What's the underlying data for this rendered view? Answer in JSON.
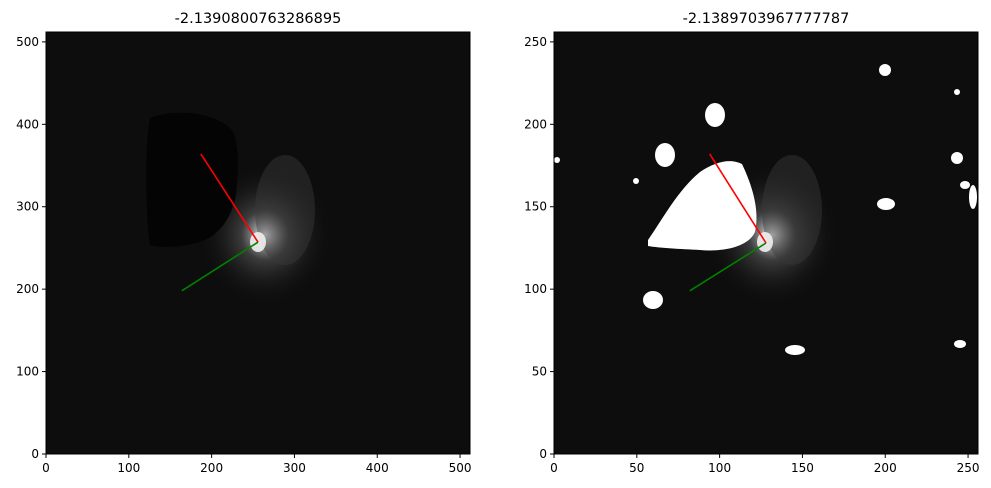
{
  "chart_data": [
    {
      "type": "heatmap",
      "title": "-2.1390800763286895",
      "xlim": [
        0,
        512
      ],
      "ylim": [
        0,
        512
      ],
      "xticks": [
        0,
        100,
        200,
        300,
        400,
        500
      ],
      "yticks": [
        0,
        100,
        200,
        300,
        400,
        500
      ],
      "tick_labels": {
        "x": [
          "0",
          "100",
          "200",
          "300",
          "400",
          "500"
        ],
        "y": [
          "0",
          "100",
          "200",
          "300",
          "400",
          "500"
        ]
      },
      "colormap": "gray",
      "grid": false,
      "image_description_elements": {
        "galaxy_center": [
          256,
          256
        ],
        "dark_masked_region_center": [
          190,
          300
        ]
      },
      "series": [
        {
          "color": "#ff0000",
          "x": [
            187,
            256
          ],
          "y": [
            364,
            257
          ]
        },
        {
          "color": "#008000",
          "x": [
            164,
            256
          ],
          "y": [
            198,
            257
          ]
        }
      ]
    },
    {
      "type": "heatmap",
      "title": "-2.1389703967777787",
      "xlim": [
        0,
        256
      ],
      "ylim": [
        0,
        256
      ],
      "xticks": [
        0,
        50,
        100,
        150,
        200,
        250
      ],
      "yticks": [
        0,
        50,
        100,
        150,
        200,
        250
      ],
      "tick_labels": {
        "x": [
          "0",
          "50",
          "100",
          "150",
          "200",
          "250"
        ],
        "y": [
          "0",
          "50",
          "100",
          "150",
          "200",
          "250"
        ]
      },
      "colormap": "gray",
      "grid": false,
      "image_description_elements": {
        "galaxy_center": [
          128,
          128
        ],
        "white_masked_region_center": [
          98,
          145
        ]
      },
      "series": [
        {
          "color": "#ff0000",
          "x": [
            94,
            128
          ],
          "y": [
            182,
            128
          ]
        },
        {
          "color": "#008000",
          "x": [
            82,
            128
          ],
          "y": [
            99,
            128
          ]
        }
      ]
    }
  ],
  "colors": {
    "background": "#ffffff",
    "image_bg": "#0d0d0d",
    "mask_dark": "#040404",
    "mask_white": "#ffffff",
    "red_line": "#ff0000",
    "green_line": "#008000"
  }
}
